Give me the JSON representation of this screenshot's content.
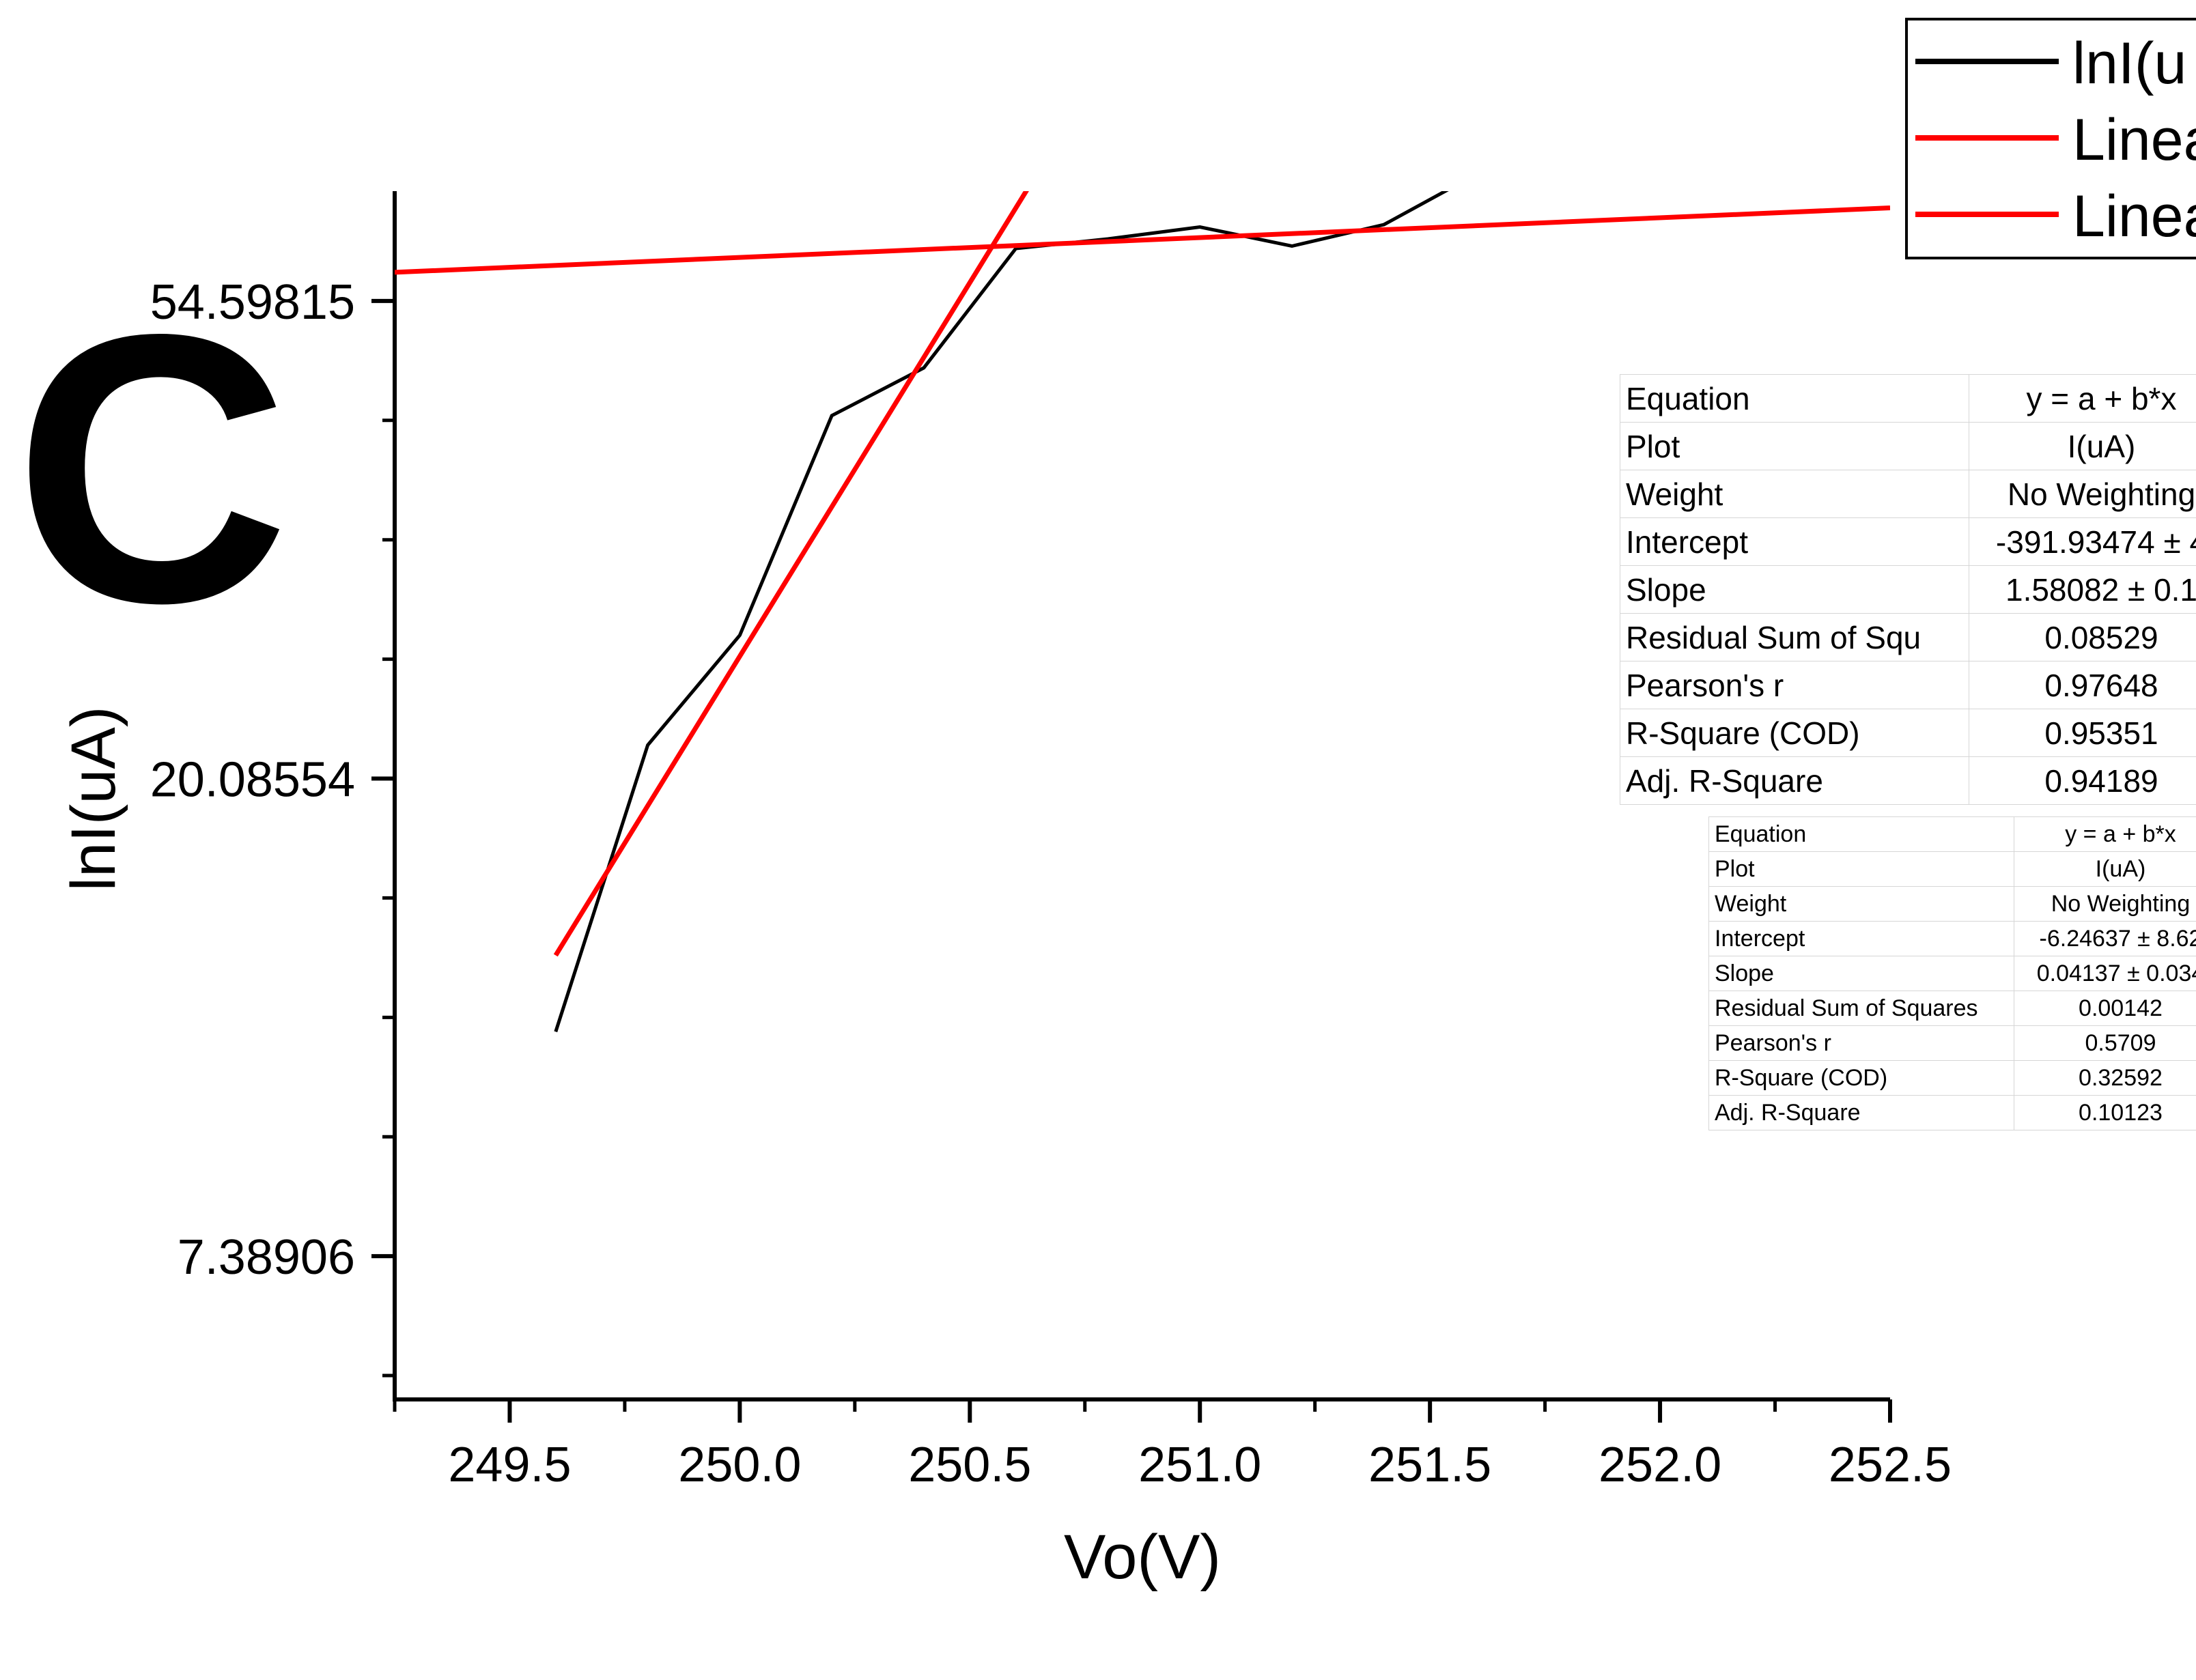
{
  "panel_label": "C",
  "chart_data": {
    "type": "line",
    "xlabel": "Vo(V)",
    "ylabel": "lnI(uA)",
    "xlim": [
      249.25,
      252.5
    ],
    "x_ticks": [
      "249.5",
      "250.0",
      "250.5",
      "251.0",
      "251.5",
      "252.0",
      "252.5"
    ],
    "y_scale": "ln",
    "ylim_ln": [
      1.7,
      4.23
    ],
    "y_ticks": [
      {
        "label": "54.59815",
        "ln": 4
      },
      {
        "label": "20.08554",
        "ln": 3
      },
      {
        "label": "7.38906",
        "ln": 2
      }
    ],
    "series": [
      {
        "name": "lnI(uA)",
        "color": "#000000",
        "x": [
          249.6,
          249.8,
          250.0,
          250.2,
          250.4,
          250.6,
          250.8,
          251.0,
          251.2,
          251.4,
          251.6,
          251.7
        ],
        "y_ln": [
          2.47,
          3.07,
          3.3,
          3.76,
          3.86,
          4.11,
          4.13,
          4.155,
          4.115,
          4.16,
          4.265,
          4.33
        ]
      },
      {
        "name": "Linear Fit",
        "color": "#ff0000",
        "x": [
          249.6,
          250.68
        ],
        "y_ln": [
          2.63,
          4.32
        ]
      },
      {
        "name": "Linear Fit",
        "color": "#ff0000",
        "x": [
          249.25,
          252.5
        ],
        "y_ln": [
          4.06,
          4.195
        ]
      }
    ],
    "legend_items": [
      "lnI(u",
      "Linea",
      "Linea"
    ],
    "stats_tables": [
      {
        "rows": [
          {
            "label": "Equation",
            "value": "y = a + b*x"
          },
          {
            "label": "Plot",
            "value": "I(uA)"
          },
          {
            "label": "Weight",
            "value": "No Weighting"
          },
          {
            "label": "Intercept",
            "value": "-391.93474 ± 4"
          },
          {
            "label": "Slope",
            "value": "1.58082 ± 0.1"
          },
          {
            "label": "Residual Sum of Squ",
            "value": "0.08529"
          },
          {
            "label": "Pearson's r",
            "value": "0.97648"
          },
          {
            "label": "R-Square (COD)",
            "value": "0.95351"
          },
          {
            "label": "Adj. R-Square",
            "value": "0.94189"
          }
        ]
      },
      {
        "rows": [
          {
            "label": "Equation",
            "value": "y = a + b*x"
          },
          {
            "label": "Plot",
            "value": "I(uA)"
          },
          {
            "label": "Weight",
            "value": "No Weighting"
          },
          {
            "label": "Intercept",
            "value": "-6.24637 ± 8.62"
          },
          {
            "label": "Slope",
            "value": "0.04137 ± 0.034"
          },
          {
            "label": "Residual Sum of Squares",
            "value": "0.00142"
          },
          {
            "label": "Pearson's r",
            "value": "0.5709"
          },
          {
            "label": "R-Square (COD)",
            "value": "0.32592"
          },
          {
            "label": "Adj. R-Square",
            "value": "0.10123"
          }
        ]
      }
    ]
  }
}
